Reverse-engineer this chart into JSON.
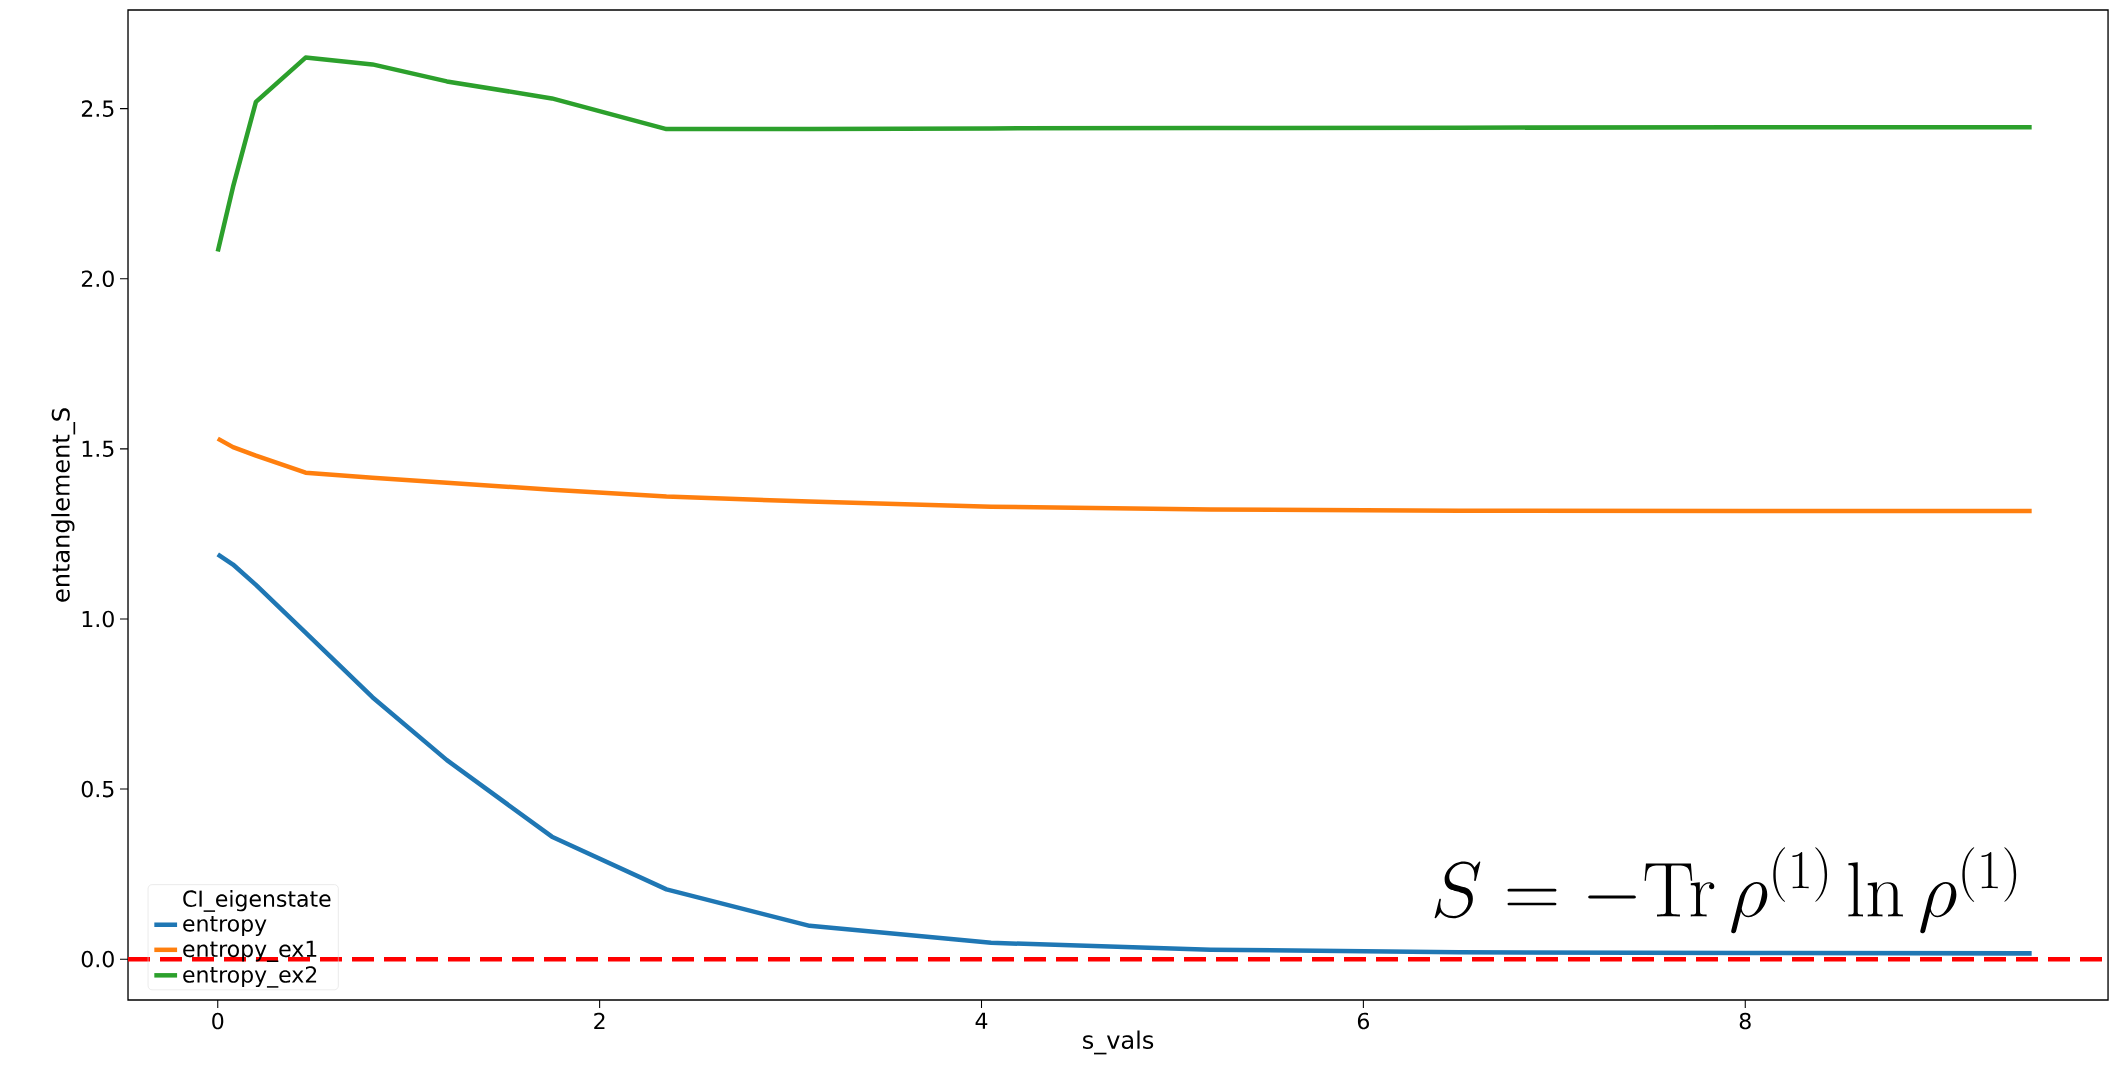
{
  "chart_data": {
    "type": "line",
    "xlabel": "s_vals",
    "ylabel": "entanglement_S",
    "legend_title": "CI_eigenstate",
    "x": [
      0,
      0.08,
      0.2,
      0.46,
      0.81,
      1.2,
      1.75,
      2.35,
      3.1,
      4.05,
      5.2,
      6.5,
      8,
      9.5
    ],
    "series": [
      {
        "name": "entropy",
        "color": "#1f77b4",
        "values": [
          1.19,
          1.16,
          1.1,
          0.96,
          0.77,
          0.585,
          0.36,
          0.205,
          0.098,
          0.048,
          0.028,
          0.02,
          0.018,
          0.017
        ]
      },
      {
        "name": "entropy_ex1",
        "color": "#ff7f0e",
        "values": [
          1.53,
          1.505,
          1.48,
          1.43,
          1.415,
          1.4,
          1.38,
          1.36,
          1.345,
          1.33,
          1.322,
          1.318,
          1.317,
          1.317
        ]
      },
      {
        "name": "entropy_ex2",
        "color": "#2ca02c",
        "values": [
          2.08,
          2.27,
          2.52,
          2.65,
          2.63,
          2.58,
          2.53,
          2.44,
          2.44,
          2.442,
          2.443,
          2.444,
          2.445,
          2.445
        ]
      }
    ],
    "xlim": [
      -0.47,
      9.9
    ],
    "ylim": [
      -0.12,
      2.79
    ],
    "xticks": [
      0,
      2,
      4,
      6,
      8
    ],
    "yticks": [
      {
        "value": 0,
        "label": "0.0"
      },
      {
        "value": 0.5,
        "label": "0.5"
      },
      {
        "value": 1,
        "label": "1.0"
      },
      {
        "value": 1.5,
        "label": "1.5"
      },
      {
        "value": 2,
        "label": "2.0"
      },
      {
        "value": 2.5,
        "label": "2.5"
      }
    ],
    "ref_lines": [
      {
        "axis": "y",
        "value": 0,
        "color": "#ff0000",
        "line_style": "dashed"
      }
    ],
    "legend": "bottom left",
    "grid": false,
    "marker": "none",
    "line_style": "solid",
    "annotations": [
      "S = -\\mathrm{Tr}\\,\\rho^{(1)}\\ln\\rho^{(1)}"
    ]
  }
}
